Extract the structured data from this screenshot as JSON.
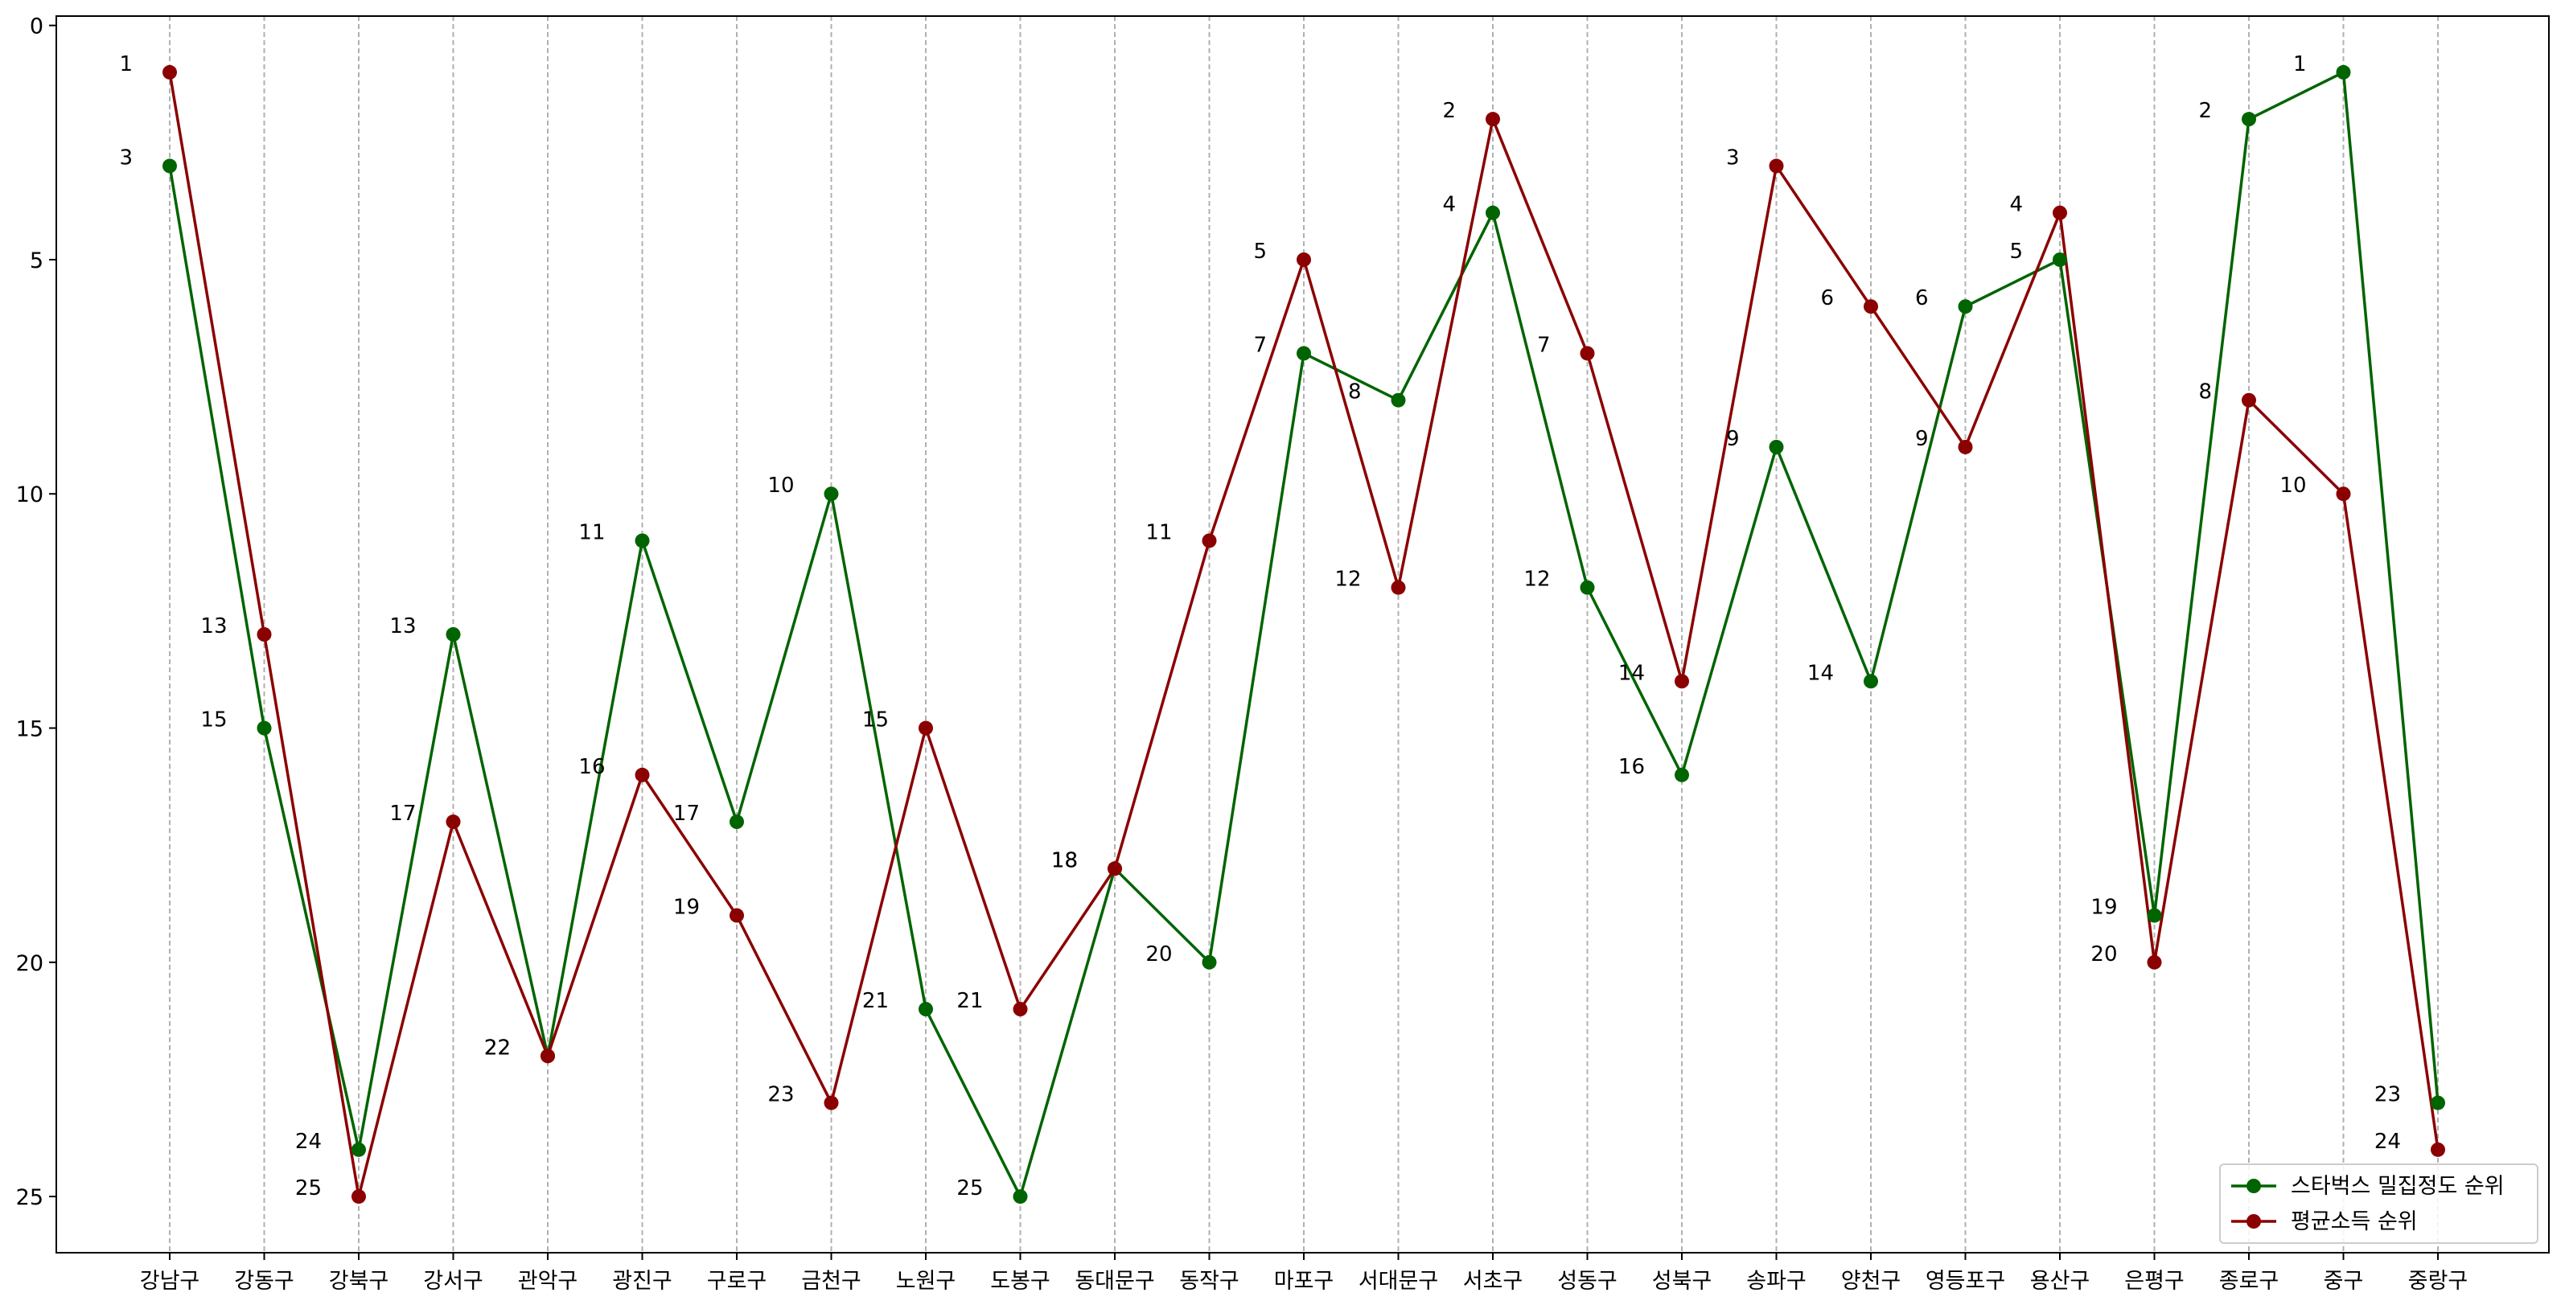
{
  "chart_data": {
    "type": "line",
    "title": "",
    "xlabel": "",
    "ylabel": "",
    "ylim": [
      26.2,
      -0.2
    ],
    "yticks": [
      0,
      5,
      10,
      15,
      20,
      25
    ],
    "y_inverted": true,
    "grid": "vertical dashed lines at each category",
    "legend_position": "lower-right",
    "categories": [
      "강남구",
      "강동구",
      "강북구",
      "강서구",
      "관악구",
      "광진구",
      "구로구",
      "금천구",
      "노원구",
      "도봉구",
      "동대문구",
      "동작구",
      "마포구",
      "서대문구",
      "서초구",
      "성동구",
      "성북구",
      "송파구",
      "양천구",
      "영등포구",
      "용산구",
      "은평구",
      "종로구",
      "중구",
      "중랑구"
    ],
    "series": [
      {
        "name": "스타벅스 밀집정도 순위",
        "color": "#006400",
        "values": [
          3,
          15,
          24,
          13,
          22,
          11,
          17,
          10,
          21,
          25,
          18,
          20,
          7,
          8,
          4,
          12,
          16,
          9,
          14,
          6,
          5,
          19,
          2,
          1,
          23
        ]
      },
      {
        "name": "평균소득 순위",
        "color": "#8B0000",
        "values": [
          1,
          13,
          25,
          17,
          22,
          16,
          19,
          23,
          15,
          21,
          18,
          11,
          5,
          12,
          2,
          7,
          14,
          3,
          6,
          9,
          4,
          20,
          8,
          10,
          24
        ]
      }
    ]
  }
}
